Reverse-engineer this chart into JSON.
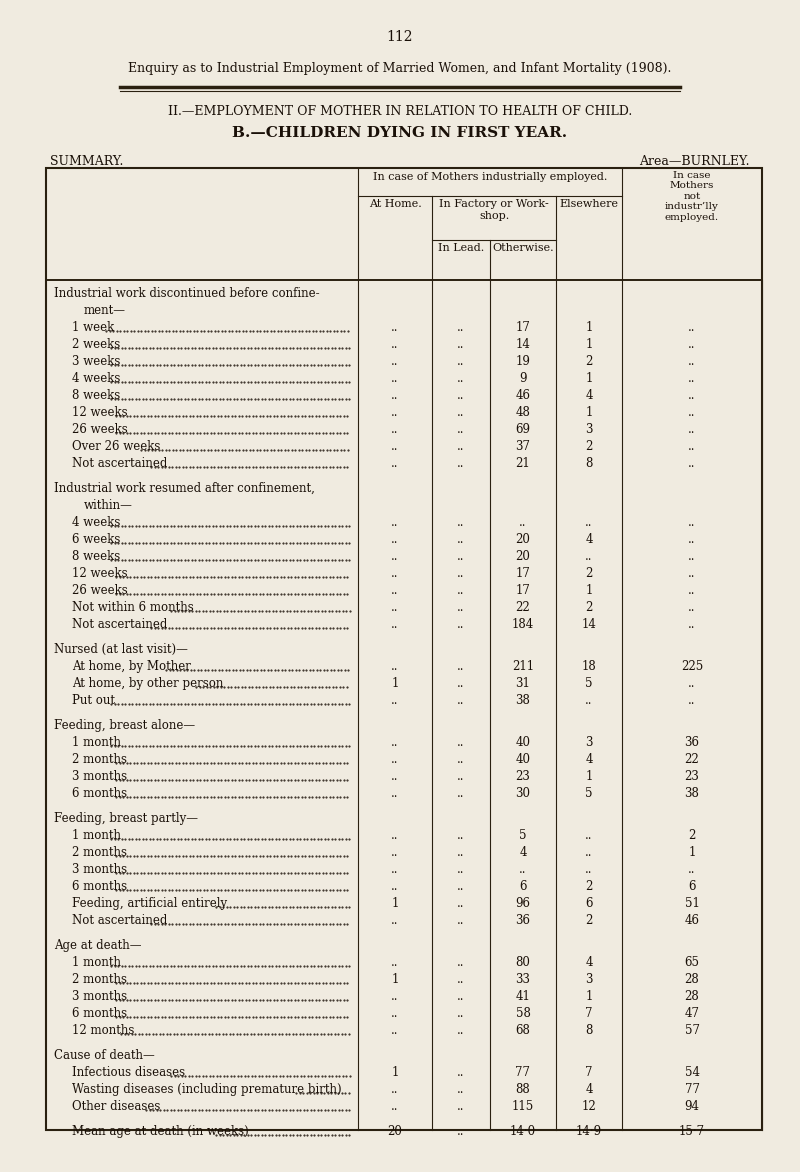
{
  "page_number": "112",
  "title_line1": "Enquiry as to Industrial Employment of Married Women, and Infant Mortality (1908).",
  "title_line2": "II.—EMPLOYMENT OF MOTHER IN RELATION TO HEALTH OF CHILD.",
  "title_line3": "B.—CHILDREN DYING IN FIRST YEAR.",
  "summary_label": "SUMMARY.",
  "area_label": "Area—BURNLEY.",
  "bg_color": "#f0ebe0",
  "text_color": "#1a1008",
  "border_color": "#2a2010",
  "rows": [
    {
      "label": "Industrial work discontinued before confine-",
      "label2": "ment—",
      "section_header": true,
      "c1": "",
      "c2a": "",
      "c2b": "",
      "c3": "",
      "c4": ""
    },
    {
      "label": "1 week",
      "dots": true,
      "c1": "..",
      "c2a": "..",
      "c2b": "17",
      "c3": "1",
      "c4": ".."
    },
    {
      "label": "2 weeks",
      "dots": true,
      "c1": "..",
      "c2a": "..",
      "c2b": "14",
      "c3": "1",
      "c4": ".."
    },
    {
      "label": "3 weeks",
      "dots": true,
      "c1": "..",
      "c2a": "..",
      "c2b": "19",
      "c3": "2",
      "c4": ".."
    },
    {
      "label": "4 weeks",
      "dots": true,
      "c1": "..",
      "c2a": "..",
      "c2b": "9",
      "c3": "1",
      "c4": ".."
    },
    {
      "label": "8 weeks",
      "dots": true,
      "c1": "..",
      "c2a": "..",
      "c2b": "46",
      "c3": "4",
      "c4": ".."
    },
    {
      "label": "12 weeks",
      "dots": true,
      "c1": "..",
      "c2a": "..",
      "c2b": "48",
      "c3": "1",
      "c4": ".."
    },
    {
      "label": "26 weeks",
      "dots": true,
      "c1": "..",
      "c2a": "..",
      "c2b": "69",
      "c3": "3",
      "c4": ".."
    },
    {
      "label": "Over 26 weeks",
      "dots": true,
      "c1": "..",
      "c2a": "..",
      "c2b": "37",
      "c3": "2",
      "c4": ".."
    },
    {
      "label": "Not ascertained",
      "dots": true,
      "c1": "..",
      "c2a": "..",
      "c2b": "21",
      "c3": "8",
      "c4": ".."
    },
    {
      "spacer": true
    },
    {
      "label": "Industrial work resumed after confinement,",
      "label2": "within—",
      "section_header": true,
      "c1": "",
      "c2a": "",
      "c2b": "",
      "c3": "",
      "c4": ""
    },
    {
      "label": "4 weeks",
      "dots": true,
      "c1": "..",
      "c2a": "..",
      "c2b": "..",
      "c3": "..",
      "c4": ".."
    },
    {
      "label": "6 weeks",
      "dots": true,
      "c1": "..",
      "c2a": "..",
      "c2b": "20",
      "c3": "4",
      "c4": ".."
    },
    {
      "label": "8 weeks",
      "dots": true,
      "c1": "..",
      "c2a": "..",
      "c2b": "20",
      "c3": "..",
      "c4": ".."
    },
    {
      "label": "12 weeks",
      "dots": true,
      "c1": "..",
      "c2a": "..",
      "c2b": "17",
      "c3": "2",
      "c4": ".."
    },
    {
      "label": "26 weeks",
      "dots": true,
      "c1": "..",
      "c2a": "..",
      "c2b": "17",
      "c3": "1",
      "c4": ".."
    },
    {
      "label": "Not within 6 months",
      "dots": true,
      "c1": "..",
      "c2a": "..",
      "c2b": "22",
      "c3": "2",
      "c4": ".."
    },
    {
      "label": "Not ascertained",
      "dots": true,
      "c1": "..",
      "c2a": "..",
      "c2b": "184",
      "c3": "14",
      "c4": ".."
    },
    {
      "spacer": true
    },
    {
      "label": "Nursed (at last visit)—",
      "section_header": true,
      "c1": "",
      "c2a": "",
      "c2b": "",
      "c3": "",
      "c4": ""
    },
    {
      "label": "At home, by Mother",
      "dots": true,
      "c1": "..",
      "c2a": "..",
      "c2b": "211",
      "c3": "18",
      "c4": "225"
    },
    {
      "label": "At home, by other person",
      "dots": true,
      "c1": "1",
      "c2a": "..",
      "c2b": "31",
      "c3": "5",
      "c4": ".."
    },
    {
      "label": "Put out",
      "dots": true,
      "c1": "..",
      "c2a": "..",
      "c2b": "38",
      "c3": "..",
      "c4": ".."
    },
    {
      "spacer": true
    },
    {
      "label": "Feeding, breast alone—",
      "section_header": true,
      "c1": "",
      "c2a": "",
      "c2b": "",
      "c3": "",
      "c4": ""
    },
    {
      "label": "1 month",
      "dots": true,
      "c1": "..",
      "c2a": "..",
      "c2b": "40",
      "c3": "3",
      "c4": "36"
    },
    {
      "label": "2 months",
      "dots": true,
      "c1": "..",
      "c2a": "..",
      "c2b": "40",
      "c3": "4",
      "c4": "22"
    },
    {
      "label": "3 months",
      "dots": true,
      "c1": "..",
      "c2a": "..",
      "c2b": "23",
      "c3": "1",
      "c4": "23"
    },
    {
      "label": "6 months",
      "dots": true,
      "c1": "..",
      "c2a": "..",
      "c2b": "30",
      "c3": "5",
      "c4": "38"
    },
    {
      "spacer": true
    },
    {
      "label": "Feeding, breast partly—",
      "section_header": true,
      "c1": "",
      "c2a": "",
      "c2b": "",
      "c3": "",
      "c4": ""
    },
    {
      "label": "1 month",
      "dots": true,
      "c1": "..",
      "c2a": "..",
      "c2b": "5",
      "c3": "..",
      "c4": "2"
    },
    {
      "label": "2 months",
      "dots": true,
      "c1": "..",
      "c2a": "..",
      "c2b": "4",
      "c3": "..",
      "c4": "1"
    },
    {
      "label": "3 months",
      "dots": true,
      "c1": "..",
      "c2a": "..",
      "c2b": "..",
      "c3": "..",
      "c4": ".."
    },
    {
      "label": "6 months",
      "dots": true,
      "c1": "..",
      "c2a": "..",
      "c2b": "6",
      "c3": "2",
      "c4": "6"
    },
    {
      "label": "Feeding, artificial entirely",
      "dots": true,
      "c1": "1",
      "c2a": "..",
      "c2b": "96",
      "c3": "6",
      "c4": "51"
    },
    {
      "label": "Not ascertained",
      "dots": true,
      "c1": "..",
      "c2a": "..",
      "c2b": "36",
      "c3": "2",
      "c4": "46"
    },
    {
      "spacer": true
    },
    {
      "label": "Age at death—",
      "section_header": true,
      "c1": "",
      "c2a": "",
      "c2b": "",
      "c3": "",
      "c4": ""
    },
    {
      "label": "1 month",
      "dots": true,
      "c1": "..",
      "c2a": "..",
      "c2b": "80",
      "c3": "4",
      "c4": "65"
    },
    {
      "label": "2 months",
      "dots": true,
      "c1": "1",
      "c2a": "..",
      "c2b": "33",
      "c3": "3",
      "c4": "28"
    },
    {
      "label": "3 months",
      "dots": true,
      "c1": "..",
      "c2a": "..",
      "c2b": "41",
      "c3": "1",
      "c4": "28"
    },
    {
      "label": "6 months",
      "dots": true,
      "c1": "..",
      "c2a": "..",
      "c2b": "58",
      "c3": "7",
      "c4": "47"
    },
    {
      "label": "12 months",
      "dots": true,
      "c1": "..",
      "c2a": "..",
      "c2b": "68",
      "c3": "8",
      "c4": "57"
    },
    {
      "spacer": true
    },
    {
      "label": "Cause of death—",
      "section_header": true,
      "c1": "",
      "c2a": "",
      "c2b": "",
      "c3": "",
      "c4": ""
    },
    {
      "label": "Infectious diseases",
      "dots": true,
      "c1": "1",
      "c2a": "..",
      "c2b": "77",
      "c3": "7",
      "c4": "54"
    },
    {
      "label": "Wasting diseases (including premature birth)",
      "dots": true,
      "c1": "..",
      "c2a": "..",
      "c2b": "88",
      "c3": "4",
      "c4": "77"
    },
    {
      "label": "Other diseases",
      "dots": true,
      "c1": "..",
      "c2a": "..",
      "c2b": "115",
      "c3": "12",
      "c4": "94"
    },
    {
      "spacer": true
    },
    {
      "label": "Mean age at death (in weeks)",
      "dots": true,
      "c1": "20",
      "c2a": "..",
      "c2b": "14·0",
      "c3": "14·9",
      "c4": "15·7"
    }
  ]
}
